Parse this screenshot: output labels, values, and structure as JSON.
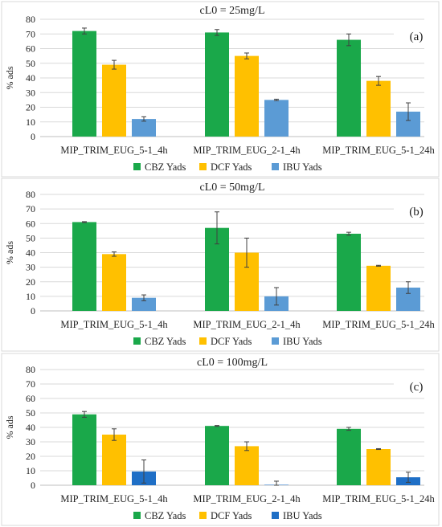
{
  "chart_data": [
    {
      "type": "bar",
      "title": "cL0 = 25mg/L",
      "panel_label": "(a)",
      "ylabel": "% ads",
      "xlabel": "",
      "ylim": [
        0,
        80
      ],
      "yticks": [
        0,
        10,
        20,
        30,
        40,
        50,
        60,
        70,
        80
      ],
      "grid": true,
      "legend": "bottom",
      "categories": [
        "MIP_TRIM_EUG_5-1_4h",
        "MIP_TRIM_EUG_2-1_4h",
        "MIP_TRIM_EUG_5-1_24h"
      ],
      "series": [
        {
          "name": "CBZ Yads",
          "color": "#1aa84a",
          "values": [
            72,
            71,
            66
          ],
          "errors": [
            2,
            2,
            4
          ]
        },
        {
          "name": "DCF Yads",
          "color": "#ffc000",
          "values": [
            49,
            55,
            38
          ],
          "errors": [
            3,
            2,
            3
          ]
        },
        {
          "name": "IBU Yads",
          "color": "#5b9bd5",
          "values": [
            12,
            25,
            17
          ],
          "errors": [
            1.5,
            0.5,
            6
          ]
        }
      ]
    },
    {
      "type": "bar",
      "title": "cL0 = 50mg/L",
      "panel_label": "(b)",
      "ylabel": "% ads",
      "xlabel": "",
      "ylim": [
        0,
        80
      ],
      "yticks": [
        0,
        10,
        20,
        30,
        40,
        50,
        60,
        70,
        80
      ],
      "grid": true,
      "legend": "bottom",
      "categories": [
        "MIP_TRIM_EUG_5-1_4h",
        "MIP_TRIM_EUG_2-1_4h",
        "MIP_TRIM_EUG_5-1_24h"
      ],
      "series": [
        {
          "name": "CBZ Yads",
          "color": "#1aa84a",
          "values": [
            61,
            57,
            53
          ],
          "errors": [
            0.3,
            11,
            1
          ]
        },
        {
          "name": "DCF Yads",
          "color": "#ffc000",
          "values": [
            39,
            40,
            31
          ],
          "errors": [
            1.5,
            10,
            0.3
          ]
        },
        {
          "name": "IBU Yads",
          "color": "#5b9bd5",
          "values": [
            9,
            10,
            16
          ],
          "errors": [
            2,
            6,
            4
          ]
        }
      ]
    },
    {
      "type": "bar",
      "title": "cL0 = 100mg/L",
      "panel_label": "(c)",
      "ylabel": "% ads",
      "xlabel": "",
      "ylim": [
        0,
        80
      ],
      "yticks": [
        0,
        10,
        20,
        30,
        40,
        50,
        60,
        70,
        80
      ],
      "grid": true,
      "legend": "bottom",
      "categories": [
        "MIP_TRIM_EUG_5-1_4h",
        "MIP_TRIM_EUG_2-1_4h",
        "MIP_TRIM_EUG_5-1_24h"
      ],
      "series": [
        {
          "name": "CBZ Yads",
          "color": "#1aa84a",
          "values": [
            49,
            41,
            39
          ],
          "errors": [
            2,
            0.3,
            1
          ]
        },
        {
          "name": "DCF Yads",
          "color": "#ffc000",
          "values": [
            35,
            27,
            25
          ],
          "errors": [
            4,
            3,
            0.3
          ]
        },
        {
          "name": "IBU Yads",
          "color": "#1f6fc6",
          "values": [
            9.5,
            0.3,
            5.5
          ],
          "errors": [
            8,
            2.5,
            3.5
          ]
        }
      ]
    }
  ]
}
